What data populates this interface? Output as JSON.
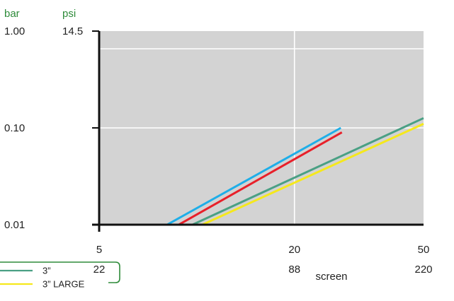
{
  "units": {
    "left": "bar",
    "right": "psi"
  },
  "xlabel": "screen",
  "colors": {
    "plot_bg": "#d3d3d3",
    "grid": "#ffffff",
    "axis": "#111111",
    "units_text": "#2e8b3a",
    "legend_border": "#2e8b3a"
  },
  "chart_data": {
    "type": "line",
    "x_scale": "log",
    "y_scale": "log",
    "xlim": [
      5,
      50
    ],
    "ylim": [
      0.01,
      1.0
    ],
    "grid": true,
    "legend_position": "bottom-left",
    "x_ticks": [
      {
        "value": 5,
        "label": "5",
        "sublabel": "22"
      },
      {
        "value": 20,
        "label": "20",
        "sublabel": "88"
      },
      {
        "value": 50,
        "label": "50",
        "sublabel": "220"
      }
    ],
    "y_ticks": [
      {
        "value": 1.0,
        "label": "1.00",
        "sublabel": "14.5"
      },
      {
        "value": 0.1,
        "label": "0.10",
        "sublabel": ""
      },
      {
        "value": 0.01,
        "label": "0.01",
        "sublabel": ""
      }
    ],
    "series": [
      {
        "color": "#1eaee8",
        "x": [
          8.1,
          27.8
        ],
        "y": [
          0.01,
          0.1
        ]
      },
      {
        "color": "#e8202a",
        "x": [
          8.8,
          28.0
        ],
        "y": [
          0.01,
          0.09
        ]
      },
      {
        "name": "3”",
        "color": "#4aa084",
        "x": [
          9.7,
          50.0
        ],
        "y": [
          0.01,
          0.126
        ]
      },
      {
        "name": "3” LARGE",
        "color": "#f5e81c",
        "x": [
          10.4,
          50.0
        ],
        "y": [
          0.01,
          0.11
        ]
      }
    ]
  }
}
